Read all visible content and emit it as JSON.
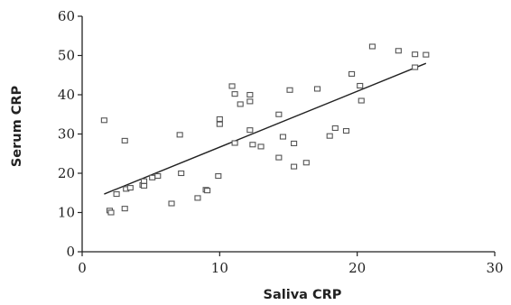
{
  "chart_data": {
    "type": "scatter",
    "xlabel": "Saliva CRP",
    "ylabel": "Serum CRP",
    "xlim": [
      0,
      30
    ],
    "ylim": [
      0,
      60
    ],
    "xticks": [
      0,
      10,
      20,
      30
    ],
    "yticks": [
      0,
      10,
      20,
      30,
      40,
      50,
      60
    ],
    "grid": false,
    "series": [
      {
        "points": [
          [
            1.6,
            33.5
          ],
          [
            2.0,
            10.5
          ],
          [
            2.1,
            10.0
          ],
          [
            2.5,
            14.7
          ],
          [
            3.1,
            28.3
          ],
          [
            3.1,
            11.0
          ],
          [
            3.2,
            16.0
          ],
          [
            3.5,
            16.3
          ],
          [
            4.4,
            17.0
          ],
          [
            4.5,
            16.8
          ],
          [
            4.5,
            18.0
          ],
          [
            5.1,
            18.9
          ],
          [
            5.5,
            19.3
          ],
          [
            6.5,
            12.3
          ],
          [
            7.1,
            29.8
          ],
          [
            7.2,
            20.0
          ],
          [
            8.4,
            13.7
          ],
          [
            9.0,
            15.8
          ],
          [
            9.1,
            15.6
          ],
          [
            9.9,
            19.3
          ],
          [
            10.0,
            33.8
          ],
          [
            10.0,
            32.5
          ],
          [
            10.9,
            42.2
          ],
          [
            11.1,
            40.2
          ],
          [
            11.1,
            27.7
          ],
          [
            11.5,
            37.6
          ],
          [
            12.2,
            40.0
          ],
          [
            12.2,
            38.3
          ],
          [
            12.2,
            31.0
          ],
          [
            12.4,
            27.3
          ],
          [
            13.0,
            26.8
          ],
          [
            14.3,
            35.0
          ],
          [
            14.3,
            24.0
          ],
          [
            14.6,
            29.3
          ],
          [
            15.1,
            41.2
          ],
          [
            15.4,
            27.6
          ],
          [
            15.4,
            21.7
          ],
          [
            16.3,
            22.7
          ],
          [
            17.1,
            41.5
          ],
          [
            18.0,
            29.5
          ],
          [
            18.4,
            31.5
          ],
          [
            19.2,
            30.8
          ],
          [
            19.6,
            45.3
          ],
          [
            20.2,
            42.3
          ],
          [
            20.3,
            38.5
          ],
          [
            21.1,
            52.3
          ],
          [
            23.0,
            51.2
          ],
          [
            24.2,
            50.3
          ],
          [
            24.2,
            47.0
          ],
          [
            25.0,
            50.2
          ]
        ]
      }
    ],
    "trendline": {
      "x1": 1.6,
      "y1": 14.7,
      "x2": 25.0,
      "y2": 48.0
    }
  }
}
